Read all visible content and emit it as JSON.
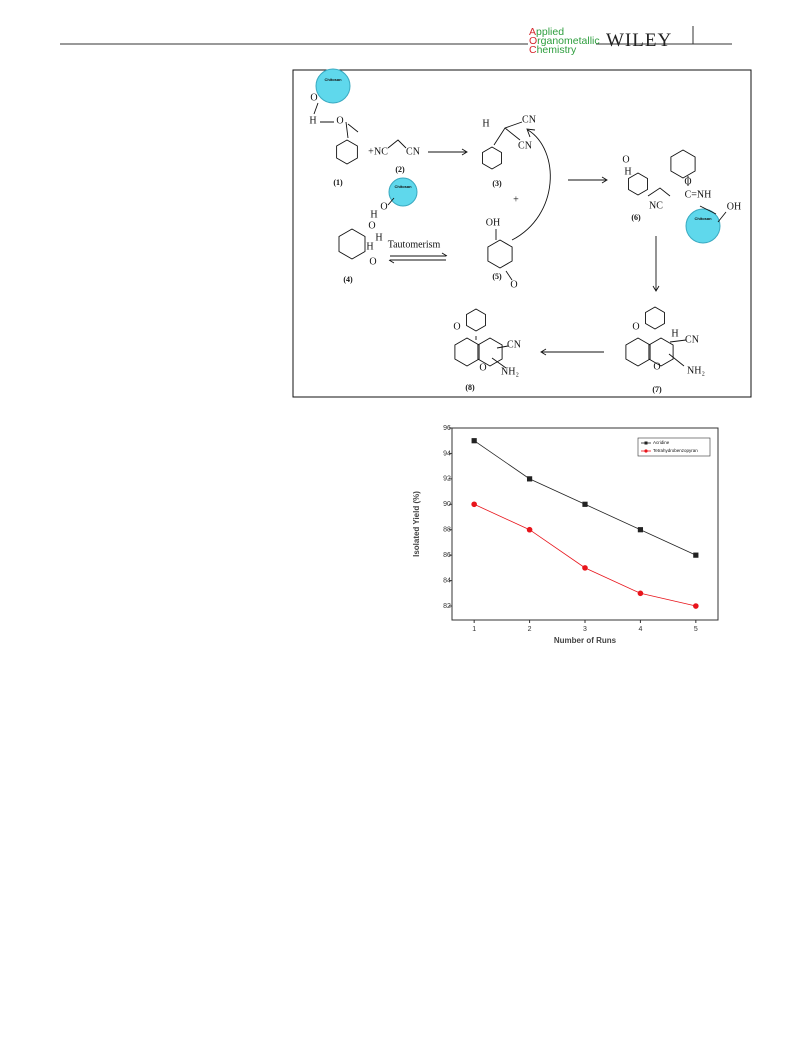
{
  "header": {
    "journal": [
      "Applied",
      "Organometallic",
      "Chemistry"
    ],
    "publisher": "WILEY"
  },
  "scheme": {
    "compounds": [
      "(1)",
      "(2)",
      "(3)",
      "(4)",
      "(5)",
      "(6)",
      "(7)",
      "(8)"
    ],
    "catalyst": [
      "Chitosan",
      "Chitosan",
      "Chitosan"
    ],
    "step": "Tautomerism",
    "labels": [
      "O",
      "H",
      "O",
      "NC",
      "CN",
      "+",
      "H",
      "CN",
      "CN",
      "+",
      "O",
      "H",
      "O",
      "H",
      "H",
      "O",
      "OH",
      "O",
      "O",
      "H",
      "O",
      "C=NH",
      "NC",
      "OH",
      "O",
      "H",
      "CN",
      "O",
      "NH₂",
      "O",
      "CN",
      "O",
      "NH₂"
    ]
  },
  "chart_data": {
    "type": "line",
    "x": [
      1,
      2,
      3,
      4,
      5
    ],
    "series": [
      {
        "name": "Acridine",
        "color": "#222222",
        "marker": "square",
        "values": [
          95,
          92,
          90,
          88,
          86
        ]
      },
      {
        "name": "Tetrahydrobenzopyran",
        "color": "#e8141b",
        "marker": "circle",
        "values": [
          90,
          88,
          85,
          83,
          82
        ]
      }
    ],
    "xlabel": "Number of Runs",
    "ylabel": "Isolated Yield (%)",
    "xlim": [
      0.6,
      5.4
    ],
    "ylim": [
      80.9,
      96
    ],
    "xticks": [
      1,
      2,
      3,
      4,
      5
    ],
    "yticks": [
      82,
      84,
      86,
      88,
      90,
      92,
      94,
      96
    ],
    "legend": "top-right"
  }
}
